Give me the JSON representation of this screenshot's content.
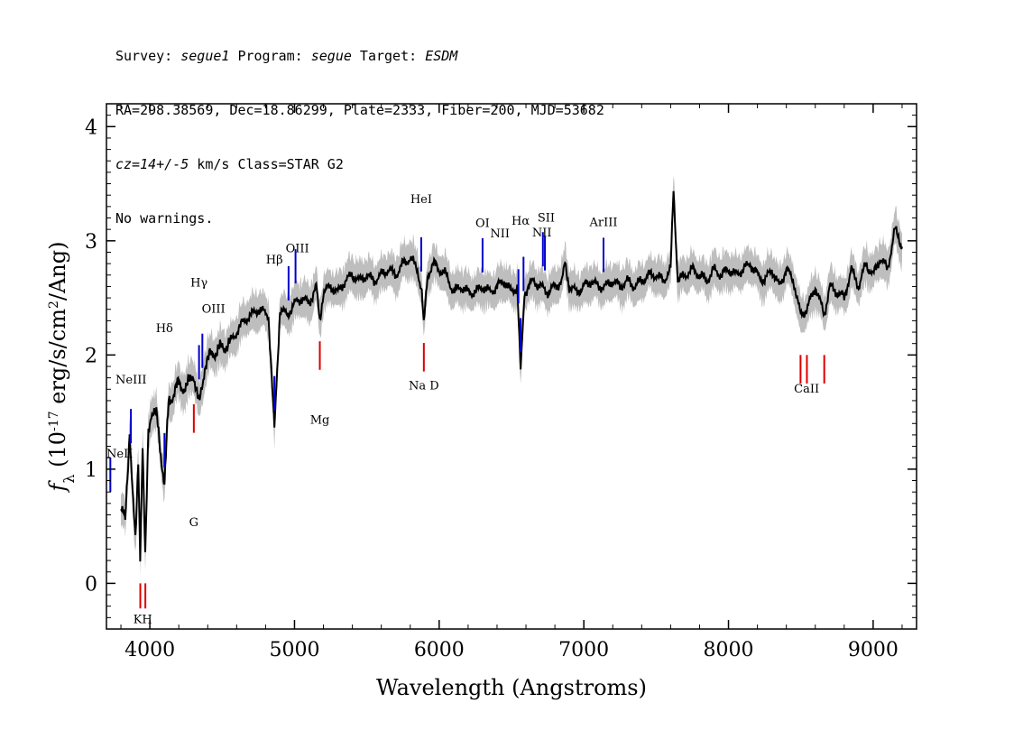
{
  "header": {
    "line1": {
      "survey_label": "Survey: ",
      "survey": "segue1",
      "program_label": " Program: ",
      "program": "segue",
      "target_label": " Target: ",
      "target": "ESDM"
    },
    "line2": "RA=298.38569, Dec=18.86299, Plate=2333, Fiber=200, MJD=53682",
    "line3": {
      "cz": "cz=14+/-5",
      "rest": " km/s Class=STAR G2"
    },
    "line4": "No warnings."
  },
  "colors": {
    "flux": "#000000",
    "error": "#bebebe",
    "emission": "#0000cc",
    "absorption": "#dd0000"
  },
  "chart_data": {
    "type": "line",
    "xlabel": "Wavelength (Angstroms)",
    "ylabel_prefix": "f",
    "ylabel_sub": "λ",
    "ylabel_main": " (10",
    "ylabel_exp": "-17",
    "ylabel_units": " erg/s/cm",
    "ylabel_exp2": "2",
    "ylabel_end": "/Ang)",
    "xlim": [
      3700,
      9300
    ],
    "ylim": [
      -0.4,
      4.2
    ],
    "x_ticks": [
      4000,
      5000,
      6000,
      7000,
      8000,
      9000
    ],
    "x_tick_labels": [
      "4000",
      "5000",
      "6000",
      "7000",
      "8000",
      "9000"
    ],
    "y_ticks": [
      0,
      1,
      2,
      3,
      4
    ],
    "y_tick_labels": [
      "0",
      "1",
      "2",
      "3",
      "4"
    ],
    "series": [
      {
        "role": "flux",
        "x": [
          3800,
          3830,
          3860,
          3880,
          3900,
          3920,
          3933,
          3950,
          3968,
          3990,
          4010,
          4050,
          4101,
          4130,
          4160,
          4200,
          4250,
          4300,
          4340,
          4380,
          4420,
          4480,
          4550,
          4650,
          4750,
          4820,
          4861,
          4900,
          4950,
          5000,
          5050,
          5100,
          5150,
          5175,
          5200,
          5250,
          5300,
          5350,
          5400,
          5450,
          5500,
          5550,
          5600,
          5650,
          5700,
          5750,
          5800,
          5850,
          5880,
          5893,
          5920,
          5960,
          6000,
          6050,
          6100,
          6150,
          6200,
          6250,
          6300,
          6350,
          6400,
          6450,
          6500,
          6540,
          6563,
          6590,
          6620,
          6650,
          6700,
          6750,
          6800,
          6850,
          6870,
          6900,
          6950,
          7000,
          7050,
          7100,
          7150,
          7200,
          7250,
          7300,
          7350,
          7400,
          7450,
          7500,
          7550,
          7600,
          7620,
          7650,
          7700,
          7750,
          7800,
          7850,
          7900,
          7950,
          8000,
          8050,
          8100,
          8150,
          8200,
          8250,
          8300,
          8350,
          8400,
          8450,
          8498,
          8542,
          8600,
          8662,
          8700,
          8750,
          8800,
          8850,
          8900,
          8950,
          9000,
          9050,
          9100,
          9150,
          9200
        ],
        "y": [
          0.65,
          0.55,
          1.35,
          0.8,
          0.35,
          1.1,
          0.25,
          1.2,
          0.2,
          1.35,
          1.5,
          1.45,
          0.85,
          1.6,
          1.65,
          1.75,
          1.7,
          1.85,
          1.55,
          1.9,
          2.0,
          2.05,
          2.1,
          2.3,
          2.4,
          2.35,
          1.35,
          2.4,
          2.35,
          2.45,
          2.5,
          2.45,
          2.6,
          2.3,
          2.55,
          2.6,
          2.55,
          2.65,
          2.7,
          2.65,
          2.7,
          2.65,
          2.7,
          2.75,
          2.7,
          2.8,
          2.85,
          2.75,
          2.55,
          2.25,
          2.7,
          2.8,
          2.75,
          2.7,
          2.55,
          2.6,
          2.55,
          2.55,
          2.6,
          2.55,
          2.6,
          2.65,
          2.55,
          2.6,
          1.85,
          2.55,
          2.6,
          2.65,
          2.6,
          2.55,
          2.6,
          2.65,
          2.8,
          2.6,
          2.55,
          2.6,
          2.65,
          2.6,
          2.6,
          2.65,
          2.6,
          2.65,
          2.6,
          2.65,
          2.7,
          2.7,
          2.65,
          2.75,
          3.45,
          2.65,
          2.7,
          2.75,
          2.7,
          2.65,
          2.75,
          2.7,
          2.75,
          2.7,
          2.75,
          2.8,
          2.7,
          2.65,
          2.75,
          2.6,
          2.75,
          2.65,
          2.35,
          2.4,
          2.6,
          2.35,
          2.6,
          2.55,
          2.5,
          2.75,
          2.6,
          2.8,
          2.7,
          2.85,
          2.75,
          3.1,
          2.95
        ]
      }
    ],
    "line_markers": [
      {
        "label": "NeII",
        "x": 3727,
        "type": "emission"
      },
      {
        "label": "NeIII",
        "x": 3869,
        "type": "emission"
      },
      {
        "label": "Hδ",
        "x": 4101,
        "type": "emission"
      },
      {
        "label": "Hγ",
        "x": 4340,
        "type": "emission"
      },
      {
        "label": "OIII",
        "x": 4363,
        "type": "emission"
      },
      {
        "label": "Hβ",
        "x": 4861,
        "type": "emission"
      },
      {
        "label": "OIII",
        "x": 4959,
        "type": "emission"
      },
      {
        "label": "OIII",
        "x": 5007,
        "type": "emission"
      },
      {
        "label": "HeI",
        "x": 5876,
        "type": "emission"
      },
      {
        "label": "OI",
        "x": 6300,
        "type": "emission"
      },
      {
        "label": "NII",
        "x": 6548,
        "type": "emission"
      },
      {
        "label": "Hα",
        "x": 6563,
        "type": "emission"
      },
      {
        "label": "NII",
        "x": 6583,
        "type": "emission"
      },
      {
        "label": "SII",
        "x": 6717,
        "type": "emission"
      },
      {
        "label": "SII",
        "x": 6731,
        "type": "emission"
      },
      {
        "label": "ArIII",
        "x": 7136,
        "type": "emission"
      },
      {
        "label": "K",
        "x": 3934,
        "type": "absorption"
      },
      {
        "label": "H",
        "x": 3969,
        "type": "absorption"
      },
      {
        "label": "G",
        "x": 4304,
        "type": "absorption"
      },
      {
        "label": "Mg",
        "x": 5175,
        "type": "absorption"
      },
      {
        "label": "Na",
        "x": 5894,
        "type": "absorption"
      },
      {
        "label": "CaII",
        "x": 8498,
        "type": "absorption"
      },
      {
        "label": "CaII",
        "x": 8542,
        "type": "absorption"
      },
      {
        "label": "CaII",
        "x": 8662,
        "type": "absorption"
      }
    ],
    "annotations": [
      {
        "text": "NeII",
        "x": 3700,
        "y": 1.1,
        "anchor": "start"
      },
      {
        "text": "NeIII",
        "x": 3870,
        "y": 1.75,
        "anchor": "middle"
      },
      {
        "text": "Hδ",
        "x": 4101,
        "y": 2.2,
        "anchor": "middle"
      },
      {
        "text": "Hγ",
        "x": 4340,
        "y": 2.6,
        "anchor": "middle"
      },
      {
        "text": "OIII",
        "x": 4440,
        "y": 2.37,
        "anchor": "middle"
      },
      {
        "text": "Hβ",
        "x": 4861,
        "y": 2.8,
        "anchor": "middle"
      },
      {
        "text": "OIII",
        "x": 5020,
        "y": 2.9,
        "anchor": "middle"
      },
      {
        "text": "HeI",
        "x": 5876,
        "y": 3.33,
        "anchor": "middle"
      },
      {
        "text": "OI",
        "x": 6300,
        "y": 3.12,
        "anchor": "middle"
      },
      {
        "text": "NII",
        "x": 6420,
        "y": 3.03,
        "anchor": "middle"
      },
      {
        "text": "Hα",
        "x": 6563,
        "y": 3.14,
        "anchor": "middle"
      },
      {
        "text": "SII",
        "x": 6740,
        "y": 3.17,
        "anchor": "middle"
      },
      {
        "text": "NII",
        "x": 6710,
        "y": 3.04,
        "anchor": "middle"
      },
      {
        "text": "ArIII",
        "x": 7136,
        "y": 3.13,
        "anchor": "middle"
      },
      {
        "text": "Na  D",
        "x": 5894,
        "y": 1.7,
        "anchor": "middle"
      },
      {
        "text": "Mg",
        "x": 5175,
        "y": 1.4,
        "anchor": "middle"
      },
      {
        "text": "G",
        "x": 4304,
        "y": 0.5,
        "anchor": "middle"
      },
      {
        "text": "KH",
        "x": 3951,
        "y": -0.35,
        "anchor": "middle"
      },
      {
        "text": "CaII",
        "x": 8540,
        "y": 1.67,
        "anchor": "middle"
      }
    ]
  }
}
